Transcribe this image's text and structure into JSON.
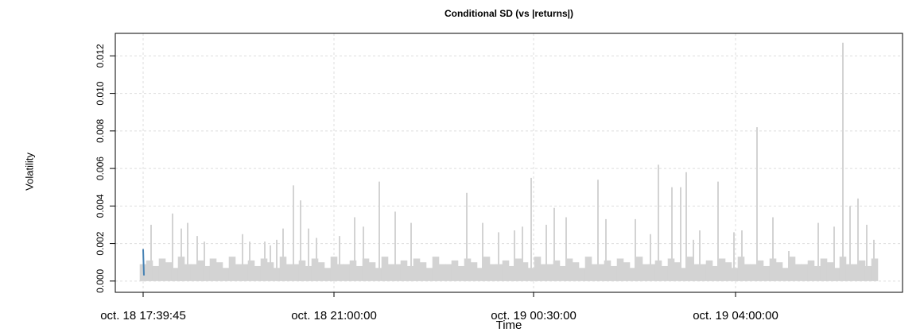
{
  "chart_data": {
    "type": "spike",
    "title": "Conditional SD (vs |returns|)",
    "xlabel": "Time",
    "ylabel": "Volatility",
    "xlim": [
      -35,
      955
    ],
    "xticks": [
      {
        "value": 0,
        "label": "oct. 18 17:39:45"
      },
      {
        "value": 240,
        "label": "oct. 18 21:00:00"
      },
      {
        "value": 491,
        "label": "oct. 19 00:30:00"
      },
      {
        "value": 745,
        "label": "oct. 19 04:00:00"
      }
    ],
    "ylim": [
      -0.0006,
      0.0132
    ],
    "yticks": [
      {
        "value": 0,
        "label": "0.000"
      },
      {
        "value": 0.002,
        "label": "0.002"
      },
      {
        "value": 0.004,
        "label": "0.004"
      },
      {
        "value": 0.006,
        "label": "0.006"
      },
      {
        "value": 0.008,
        "label": "0.008"
      },
      {
        "value": 0.01,
        "label": "0.010"
      },
      {
        "value": 0.012,
        "label": "0.012"
      }
    ],
    "grid": true,
    "series": [
      {
        "color": "#d3d3d3",
        "style": "band",
        "x": [
          0,
          8,
          16,
          24,
          32,
          40,
          48,
          56,
          64,
          72,
          80,
          88,
          96,
          104,
          112,
          120,
          128,
          136,
          144,
          152,
          160,
          168,
          176,
          184,
          192,
          200,
          208,
          216,
          224,
          232,
          240,
          248,
          256,
          264,
          272,
          280,
          288,
          296,
          304,
          312,
          320,
          328,
          336,
          344,
          352,
          360,
          368,
          376,
          384,
          392,
          400,
          408,
          416,
          424,
          432,
          440,
          448,
          456,
          464,
          472,
          480,
          488,
          496,
          504,
          512,
          520,
          528,
          536,
          544,
          552,
          560,
          568,
          576,
          584,
          592,
          600,
          608,
          616,
          624,
          632,
          640,
          648,
          656,
          664,
          672,
          680,
          688,
          696,
          704,
          712,
          720,
          728,
          736,
          744,
          752,
          760,
          768,
          776,
          784,
          792,
          800,
          808,
          816,
          824,
          832,
          840,
          848,
          856,
          864,
          872,
          880,
          888,
          896,
          904,
          912,
          920
        ],
        "values": [
          0.0009,
          0.0011,
          0.0008,
          0.0012,
          0.001,
          0.0007,
          0.0013,
          0.0009,
          0.0009,
          0.0011,
          0.0008,
          0.0012,
          0.001,
          0.0007,
          0.0013,
          0.0009,
          0.0009,
          0.0011,
          0.0008,
          0.0012,
          0.001,
          0.0007,
          0.0013,
          0.0009,
          0.0009,
          0.0011,
          0.0008,
          0.0012,
          0.001,
          0.0007,
          0.0013,
          0.0009,
          0.0009,
          0.0011,
          0.0008,
          0.0012,
          0.001,
          0.0007,
          0.0013,
          0.0009,
          0.0009,
          0.0011,
          0.0008,
          0.0012,
          0.001,
          0.0007,
          0.0013,
          0.0009,
          0.0009,
          0.0011,
          0.0008,
          0.0012,
          0.001,
          0.0007,
          0.0013,
          0.0009,
          0.0009,
          0.0011,
          0.0008,
          0.0012,
          0.001,
          0.0007,
          0.0013,
          0.0009,
          0.0009,
          0.0011,
          0.0008,
          0.0012,
          0.001,
          0.0007,
          0.0013,
          0.0009,
          0.0009,
          0.0011,
          0.0008,
          0.0012,
          0.001,
          0.0007,
          0.0013,
          0.0009,
          0.0009,
          0.0011,
          0.0008,
          0.0012,
          0.001,
          0.0007,
          0.0013,
          0.0009,
          0.0009,
          0.0011,
          0.0008,
          0.0012,
          0.001,
          0.0007,
          0.0013,
          0.0009,
          0.0009,
          0.0011,
          0.0008,
          0.0012,
          0.001,
          0.0007,
          0.0013,
          0.0009,
          0.0009,
          0.0011,
          0.0008,
          0.0012,
          0.001,
          0.0007,
          0.0013,
          0.0009,
          0.0009,
          0.0011,
          0.0008,
          0.0012
        ]
      },
      {
        "color": "#d3d3d3",
        "style": "spike",
        "x": [
          10,
          37,
          48,
          56,
          68,
          77,
          125,
          134,
          153,
          160,
          168,
          176,
          189,
          198,
          208,
          218,
          247,
          266,
          277,
          297,
          317,
          337,
          407,
          427,
          447,
          467,
          477,
          488,
          507,
          517,
          532,
          572,
          582,
          619,
          638,
          648,
          665,
          676,
          683,
          692,
          700,
          723,
          743,
          753,
          772,
          792,
          812,
          849,
          869,
          880,
          889,
          899,
          910,
          919
        ],
        "values": [
          0.003,
          0.0036,
          0.0028,
          0.0031,
          0.0024,
          0.0021,
          0.0025,
          0.0021,
          0.0021,
          0.0019,
          0.0022,
          0.0028,
          0.0051,
          0.0043,
          0.0028,
          0.0023,
          0.0024,
          0.0034,
          0.0029,
          0.0053,
          0.0037,
          0.0031,
          0.0047,
          0.0031,
          0.0026,
          0.0027,
          0.0029,
          0.0055,
          0.003,
          0.0039,
          0.0034,
          0.0054,
          0.0033,
          0.0033,
          0.0025,
          0.0062,
          0.005,
          0.005,
          0.0058,
          0.0022,
          0.0027,
          0.0053,
          0.0026,
          0.0027,
          0.0082,
          0.0034,
          0.0016,
          0.0031,
          0.0029,
          0.0127,
          0.004,
          0.0044,
          0.003,
          0.0022
        ]
      },
      {
        "color": "#4682b4",
        "style": "line",
        "x": [
          0,
          1
        ],
        "values": [
          0.0017,
          0.0003
        ]
      }
    ]
  }
}
